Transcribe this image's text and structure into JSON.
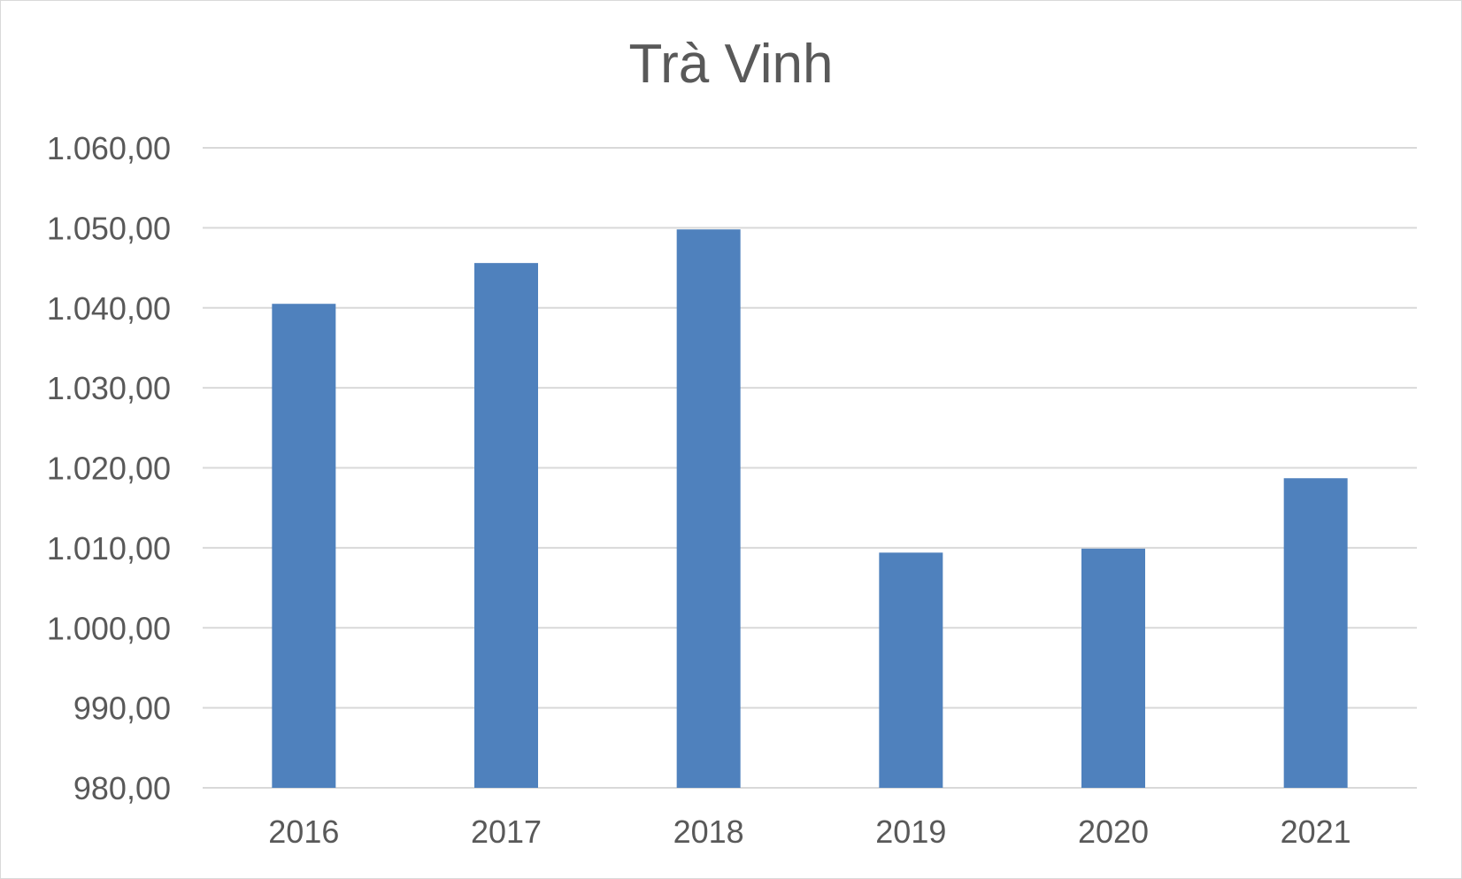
{
  "chart_data": {
    "type": "bar",
    "title": "Trà Vinh",
    "categories": [
      "2016",
      "2017",
      "2018",
      "2019",
      "2020",
      "2021"
    ],
    "values": [
      1040.5,
      1045.6,
      1049.8,
      1009.4,
      1009.9,
      1018.7
    ],
    "ylim": [
      980,
      1060
    ],
    "yticks": [
      980,
      990,
      1000,
      1010,
      1020,
      1030,
      1040,
      1050,
      1060
    ],
    "ytick_labels": [
      "980,00",
      "990,00",
      "1.000,00",
      "1.010,00",
      "1.020,00",
      "1.030,00",
      "1.040,00",
      "1.050,00",
      "1.060,00"
    ],
    "xlabel": "",
    "ylabel": "",
    "grid": true,
    "legend": "none",
    "bar_color": "#4f81bd"
  }
}
